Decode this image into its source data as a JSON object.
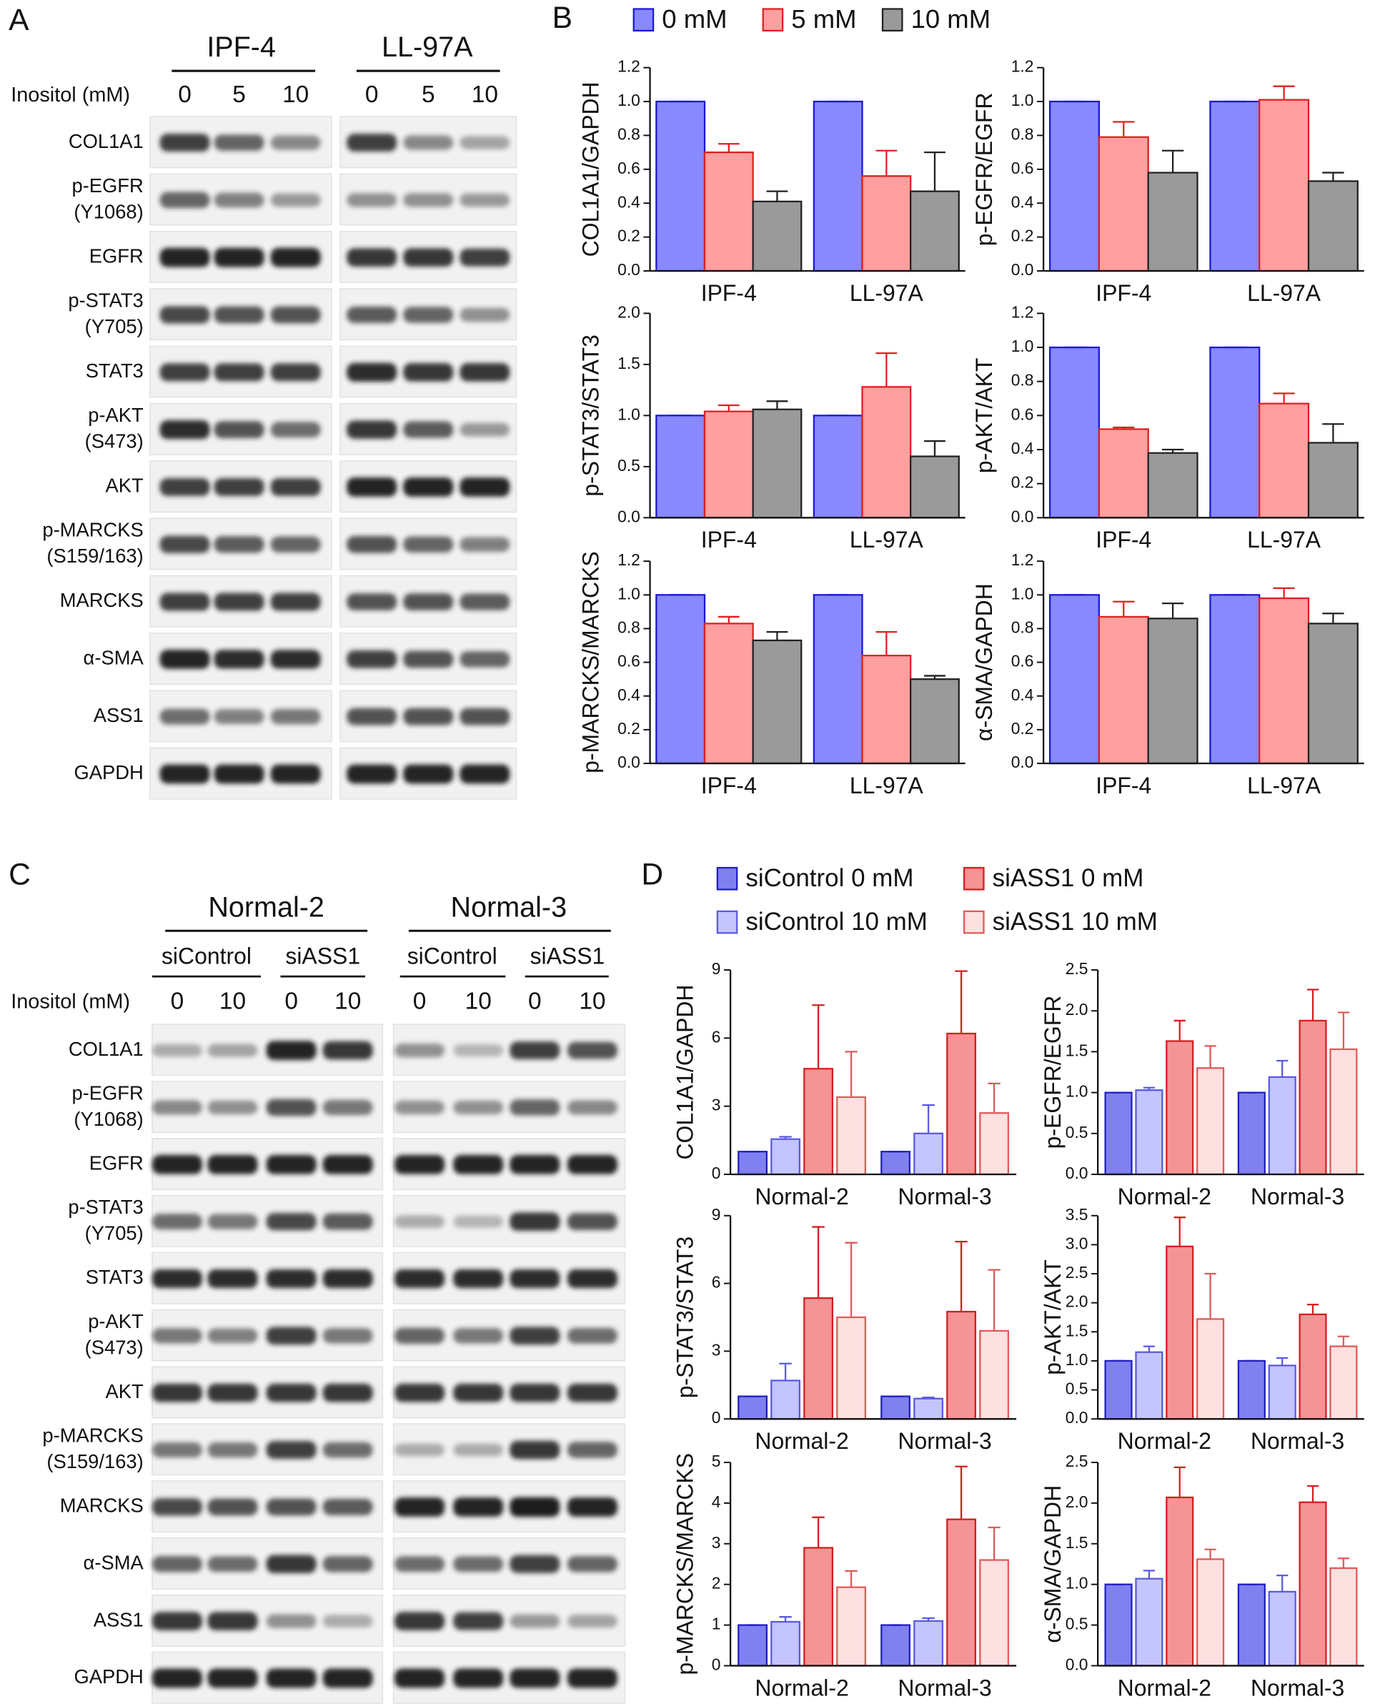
{
  "panel_A": {
    "label": "A",
    "groups": [
      "IPF-4",
      "LL-97A"
    ],
    "inositol_label": "Inositol (mM)",
    "lanes": [
      0,
      5,
      10,
      0,
      5,
      10
    ],
    "proteins": [
      [
        "COL1A1"
      ],
      [
        "p-EGFR",
        "(Y1068)"
      ],
      [
        "EGFR"
      ],
      [
        "p-STAT3",
        "(Y705)"
      ],
      [
        "STAT3"
      ],
      [
        "p-AKT",
        "(S473)"
      ],
      [
        "AKT"
      ],
      [
        "p-MARCKS",
        "(S159/163)"
      ],
      [
        "MARCKS"
      ],
      [
        "α-SMA"
      ],
      [
        "ASS1"
      ],
      [
        "GAPDH"
      ]
    ]
  },
  "panel_B": {
    "label": "B"
  },
  "panel_C": {
    "label": "C",
    "groups": [
      "Normal-2",
      "Normal-3"
    ],
    "subgroups": [
      "siControl",
      "siASS1",
      "siControl",
      "siASS1"
    ],
    "inositol_label": "Inositol (mM)",
    "lanes": [
      0,
      10,
      0,
      10,
      0,
      10,
      0,
      10
    ],
    "proteins": [
      [
        "COL1A1"
      ],
      [
        "p-EGFR",
        "(Y1068)"
      ],
      [
        "EGFR"
      ],
      [
        "p-STAT3",
        "(Y705)"
      ],
      [
        "STAT3"
      ],
      [
        "p-AKT",
        "(S473)"
      ],
      [
        "AKT"
      ],
      [
        "p-MARCKS",
        "(S159/163)"
      ],
      [
        "MARCKS"
      ],
      [
        "α-SMA"
      ],
      [
        "ASS1"
      ],
      [
        "GAPDH"
      ]
    ]
  },
  "panel_D": {
    "label": "D"
  },
  "chart_data": [
    {
      "type": "bar",
      "ylabel": "COL1A1/GAPDH",
      "categories": [
        "IPF-4",
        "LL-97A"
      ],
      "ylim": [
        0,
        1.2
      ],
      "yticks": [
        {
          "value": 0,
          "label": "0.0"
        },
        0.2,
        0.4,
        0.6,
        0.8,
        {
          "value": 1,
          "label": "1.0"
        },
        1.2
      ],
      "series": [
        {
          "name": "0 mM",
          "color": "#8888ff",
          "edgecolor": "#1a1ad0",
          "values": [
            1,
            1
          ],
          "errors": [
            0,
            0
          ]
        },
        {
          "name": "5 mM",
          "color": "#ff9f9f",
          "edgecolor": "#e02020",
          "values": [
            0.7,
            0.56
          ],
          "errors": [
            0.05,
            0.15
          ]
        },
        {
          "name": "10 mM",
          "color": "#9a9a9a",
          "edgecolor": "#222222",
          "values": [
            0.41,
            0.47
          ],
          "errors": [
            0.06,
            0.23
          ]
        }
      ]
    },
    {
      "type": "bar",
      "ylabel": "p-EGFR/EGFR",
      "categories": [
        "IPF-4",
        "LL-97A"
      ],
      "ylim": [
        0,
        1.2
      ],
      "yticks": [
        {
          "value": 0,
          "label": "0.0"
        },
        0.2,
        0.4,
        0.6,
        0.8,
        {
          "value": 1,
          "label": "1.0"
        },
        1.2
      ],
      "series": [
        {
          "name": "0 mM",
          "color": "#8888ff",
          "edgecolor": "#1a1ad0",
          "values": [
            1,
            1
          ],
          "errors": [
            0,
            0
          ]
        },
        {
          "name": "5 mM",
          "color": "#ff9f9f",
          "edgecolor": "#e02020",
          "values": [
            0.79,
            1.01
          ],
          "errors": [
            0.09,
            0.08
          ]
        },
        {
          "name": "10 mM",
          "color": "#9a9a9a",
          "edgecolor": "#222222",
          "values": [
            0.58,
            0.53
          ],
          "errors": [
            0.13,
            0.05
          ]
        }
      ]
    },
    {
      "type": "bar",
      "ylabel": "p-STAT3/STAT3",
      "categories": [
        "IPF-4",
        "LL-97A"
      ],
      "ylim": [
        0,
        2
      ],
      "yticks": [
        {
          "value": 0,
          "label": "0.0"
        },
        0.5,
        {
          "value": 1,
          "label": "1.0"
        },
        1.5,
        {
          "value": 2,
          "label": "2.0"
        }
      ],
      "series": [
        {
          "name": "0 mM",
          "color": "#8888ff",
          "edgecolor": "#1a1ad0",
          "values": [
            1,
            1
          ],
          "errors": [
            0,
            0
          ]
        },
        {
          "name": "5 mM",
          "color": "#ff9f9f",
          "edgecolor": "#e02020",
          "values": [
            1.04,
            1.28
          ],
          "errors": [
            0.06,
            0.33
          ]
        },
        {
          "name": "10 mM",
          "color": "#9a9a9a",
          "edgecolor": "#222222",
          "values": [
            1.06,
            0.6
          ],
          "errors": [
            0.08,
            0.15
          ]
        }
      ]
    },
    {
      "type": "bar",
      "ylabel": "p-AKT/AKT",
      "categories": [
        "IPF-4",
        "LL-97A"
      ],
      "ylim": [
        0,
        1.2
      ],
      "yticks": [
        {
          "value": 0,
          "label": "0.0"
        },
        0.2,
        0.4,
        0.6,
        0.8,
        {
          "value": 1,
          "label": "1.0"
        },
        1.2
      ],
      "series": [
        {
          "name": "0 mM",
          "color": "#8888ff",
          "edgecolor": "#1a1ad0",
          "values": [
            1,
            1
          ],
          "errors": [
            0,
            0
          ]
        },
        {
          "name": "5 mM",
          "color": "#ff9f9f",
          "edgecolor": "#e02020",
          "values": [
            0.52,
            0.67
          ],
          "errors": [
            0.01,
            0.06
          ]
        },
        {
          "name": "10 mM",
          "color": "#9a9a9a",
          "edgecolor": "#222222",
          "values": [
            0.38,
            0.44
          ],
          "errors": [
            0.02,
            0.11
          ]
        }
      ]
    },
    {
      "type": "bar",
      "ylabel": "p-MARCKS/MARCKS",
      "categories": [
        "IPF-4",
        "LL-97A"
      ],
      "ylim": [
        0,
        1.2
      ],
      "yticks": [
        {
          "value": 0,
          "label": "0.0"
        },
        0.2,
        0.4,
        0.6,
        0.8,
        {
          "value": 1,
          "label": "1.0"
        },
        1.2
      ],
      "series": [
        {
          "name": "0 mM",
          "color": "#8888ff",
          "edgecolor": "#1a1ad0",
          "values": [
            1,
            1
          ],
          "errors": [
            0,
            0
          ]
        },
        {
          "name": "5 mM",
          "color": "#ff9f9f",
          "edgecolor": "#e02020",
          "values": [
            0.83,
            0.64
          ],
          "errors": [
            0.04,
            0.14
          ]
        },
        {
          "name": "10 mM",
          "color": "#9a9a9a",
          "edgecolor": "#222222",
          "values": [
            0.73,
            0.5
          ],
          "errors": [
            0.05,
            0.02
          ]
        }
      ]
    },
    {
      "type": "bar",
      "ylabel": "α-SMA/GAPDH",
      "categories": [
        "IPF-4",
        "LL-97A"
      ],
      "ylim": [
        0,
        1.2
      ],
      "yticks": [
        {
          "value": 0,
          "label": "0.0"
        },
        0.2,
        0.4,
        0.6,
        0.8,
        {
          "value": 1,
          "label": "1.0"
        },
        1.2
      ],
      "series": [
        {
          "name": "0 mM",
          "color": "#8888ff",
          "edgecolor": "#1a1ad0",
          "values": [
            1,
            1
          ],
          "errors": [
            0,
            0
          ]
        },
        {
          "name": "5 mM",
          "color": "#ff9f9f",
          "edgecolor": "#e02020",
          "values": [
            0.87,
            0.98
          ],
          "errors": [
            0.09,
            0.06
          ]
        },
        {
          "name": "10 mM",
          "color": "#9a9a9a",
          "edgecolor": "#222222",
          "values": [
            0.86,
            0.83
          ],
          "errors": [
            0.09,
            0.06
          ]
        }
      ]
    },
    {
      "type": "bar",
      "ylabel": "COL1A1/GAPDH",
      "categories": [
        "Normal-2",
        "Normal-3"
      ],
      "ylim": [
        0,
        9
      ],
      "yticks": [
        0,
        3,
        6,
        9
      ],
      "series": [
        {
          "name": "siControl 0 mM",
          "color": "#8080f0",
          "edgecolor": "#2020c0",
          "values": [
            1,
            1
          ],
          "errors": [
            0,
            0
          ]
        },
        {
          "name": "siControl 10 mM",
          "color": "#c4c4ff",
          "edgecolor": "#5a5ae0",
          "values": [
            1.55,
            1.8
          ],
          "errors": [
            0.1,
            1.25
          ]
        },
        {
          "name": "siASS1 0 mM",
          "color": "#f49494",
          "edgecolor": "#d02020",
          "values": [
            4.65,
            6.2
          ],
          "errors": [
            2.8,
            2.75
          ]
        },
        {
          "name": "siASS1 10 mM",
          "color": "#fde0e0",
          "edgecolor": "#e05a5a",
          "values": [
            3.4,
            2.7
          ],
          "errors": [
            2.0,
            1.3
          ]
        }
      ]
    },
    {
      "type": "bar",
      "ylabel": "p-EGFR/EGFR",
      "categories": [
        "Normal-2",
        "Normal-3"
      ],
      "ylim": [
        0,
        2.5
      ],
      "yticks": [
        {
          "value": 0,
          "label": "0.0"
        },
        0.5,
        {
          "value": 1,
          "label": "1.0"
        },
        1.5,
        {
          "value": 2,
          "label": "2.0"
        },
        2.5
      ],
      "series": [
        {
          "name": "siControl 0 mM",
          "color": "#8080f0",
          "edgecolor": "#2020c0",
          "values": [
            1,
            1
          ],
          "errors": [
            0,
            0
          ]
        },
        {
          "name": "siControl 10 mM",
          "color": "#c4c4ff",
          "edgecolor": "#5a5ae0",
          "values": [
            1.03,
            1.19
          ],
          "errors": [
            0.03,
            0.2
          ]
        },
        {
          "name": "siASS1 0 mM",
          "color": "#f49494",
          "edgecolor": "#d02020",
          "values": [
            1.63,
            1.88
          ],
          "errors": [
            0.25,
            0.38
          ]
        },
        {
          "name": "siASS1 10 mM",
          "color": "#fde0e0",
          "edgecolor": "#e05a5a",
          "values": [
            1.3,
            1.53
          ],
          "errors": [
            0.27,
            0.45
          ]
        }
      ]
    },
    {
      "type": "bar",
      "ylabel": "p-STAT3/STAT3",
      "categories": [
        "Normal-2",
        "Normal-3"
      ],
      "ylim": [
        0,
        9
      ],
      "yticks": [
        0,
        3,
        6,
        9
      ],
      "series": [
        {
          "name": "siControl 0 mM",
          "color": "#8080f0",
          "edgecolor": "#2020c0",
          "values": [
            1,
            1
          ],
          "errors": [
            0,
            0
          ]
        },
        {
          "name": "siControl 10 mM",
          "color": "#c4c4ff",
          "edgecolor": "#5a5ae0",
          "values": [
            1.7,
            0.9
          ],
          "errors": [
            0.75,
            0.05
          ]
        },
        {
          "name": "siASS1 0 mM",
          "color": "#f49494",
          "edgecolor": "#d02020",
          "values": [
            5.35,
            4.75
          ],
          "errors": [
            3.15,
            3.1
          ]
        },
        {
          "name": "siASS1 10 mM",
          "color": "#fde0e0",
          "edgecolor": "#e05a5a",
          "values": [
            4.5,
            3.9
          ],
          "errors": [
            3.3,
            2.7
          ]
        }
      ]
    },
    {
      "type": "bar",
      "ylabel": "p-AKT/AKT",
      "categories": [
        "Normal-2",
        "Normal-3"
      ],
      "ylim": [
        0,
        3.5
      ],
      "yticks": [
        {
          "value": 0,
          "label": "0.0"
        },
        0.5,
        {
          "value": 1,
          "label": "1.0"
        },
        1.5,
        {
          "value": 2,
          "label": "2.0"
        },
        2.5,
        {
          "value": 3,
          "label": "3.0"
        },
        3.5
      ],
      "series": [
        {
          "name": "siControl 0 mM",
          "color": "#8080f0",
          "edgecolor": "#2020c0",
          "values": [
            1,
            1
          ],
          "errors": [
            0,
            0
          ]
        },
        {
          "name": "siControl 10 mM",
          "color": "#c4c4ff",
          "edgecolor": "#5a5ae0",
          "values": [
            1.15,
            0.92
          ],
          "errors": [
            0.1,
            0.13
          ]
        },
        {
          "name": "siASS1 0 mM",
          "color": "#f49494",
          "edgecolor": "#d02020",
          "values": [
            2.97,
            1.8
          ],
          "errors": [
            0.5,
            0.17
          ]
        },
        {
          "name": "siASS1 10 mM",
          "color": "#fde0e0",
          "edgecolor": "#e05a5a",
          "values": [
            1.72,
            1.25
          ],
          "errors": [
            0.78,
            0.17
          ]
        }
      ]
    },
    {
      "type": "bar",
      "ylabel": "p-MARCKS/MARCKS",
      "categories": [
        "Normal-2",
        "Normal-3"
      ],
      "ylim": [
        0,
        5
      ],
      "yticks": [
        0,
        1,
        2,
        3,
        4,
        5
      ],
      "series": [
        {
          "name": "siControl 0 mM",
          "color": "#8080f0",
          "edgecolor": "#2020c0",
          "values": [
            1,
            1
          ],
          "errors": [
            0,
            0
          ]
        },
        {
          "name": "siControl 10 mM",
          "color": "#c4c4ff",
          "edgecolor": "#5a5ae0",
          "values": [
            1.08,
            1.1
          ],
          "errors": [
            0.12,
            0.07
          ]
        },
        {
          "name": "siASS1 0 mM",
          "color": "#f49494",
          "edgecolor": "#d02020",
          "values": [
            2.9,
            3.6
          ],
          "errors": [
            0.75,
            1.3
          ]
        },
        {
          "name": "siASS1 10 mM",
          "color": "#fde0e0",
          "edgecolor": "#e05a5a",
          "values": [
            1.93,
            2.6
          ],
          "errors": [
            0.4,
            0.8
          ]
        }
      ]
    },
    {
      "type": "bar",
      "ylabel": "α-SMA/GAPDH",
      "categories": [
        "Normal-2",
        "Normal-3"
      ],
      "ylim": [
        0,
        2.5
      ],
      "yticks": [
        {
          "value": 0,
          "label": "0.0"
        },
        0.5,
        {
          "value": 1,
          "label": "1.0"
        },
        1.5,
        {
          "value": 2,
          "label": "2.0"
        },
        2.5
      ],
      "series": [
        {
          "name": "siControl 0 mM",
          "color": "#8080f0",
          "edgecolor": "#2020c0",
          "values": [
            1,
            1
          ],
          "errors": [
            0,
            0
          ]
        },
        {
          "name": "siControl 10 mM",
          "color": "#c4c4ff",
          "edgecolor": "#5a5ae0",
          "values": [
            1.07,
            0.91
          ],
          "errors": [
            0.1,
            0.2
          ]
        },
        {
          "name": "siASS1 0 mM",
          "color": "#f49494",
          "edgecolor": "#d02020",
          "values": [
            2.07,
            2.01
          ],
          "errors": [
            0.37,
            0.2
          ]
        },
        {
          "name": "siASS1 10 mM",
          "color": "#fde0e0",
          "edgecolor": "#e05a5a",
          "values": [
            1.31,
            1.2
          ],
          "errors": [
            0.12,
            0.12
          ]
        }
      ]
    }
  ]
}
